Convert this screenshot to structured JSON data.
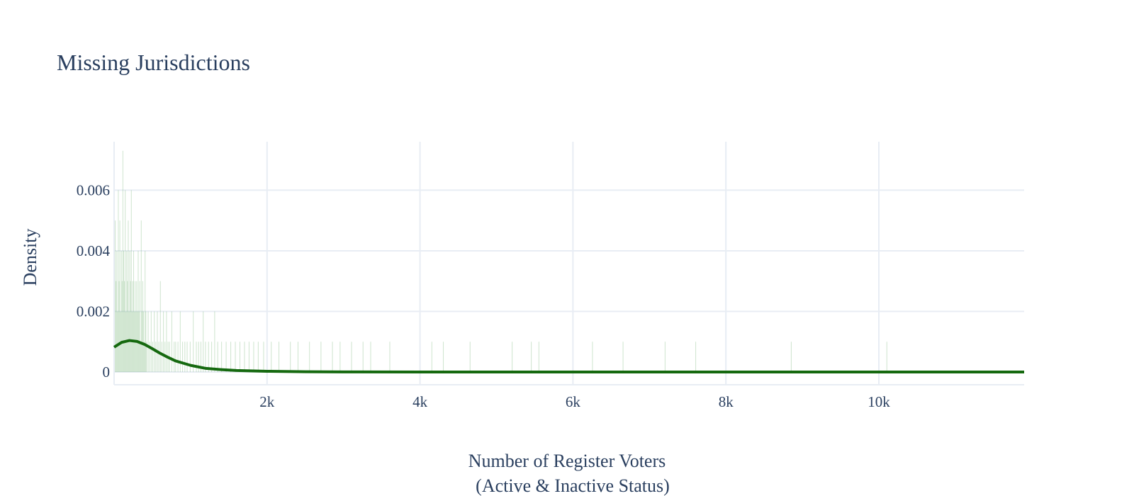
{
  "chart_data": {
    "type": "histogram",
    "title": "Missing Jurisdictions",
    "xlabel_line1": "Number of Register Voters",
    "xlabel_line2": "(Active & Inactive Status)",
    "ylabel": "Density",
    "xlim": [
      0,
      11900
    ],
    "ylim": [
      -0.00042,
      0.0076
    ],
    "x_ticks": [
      {
        "value": 2000,
        "label": "2k"
      },
      {
        "value": 4000,
        "label": "4k"
      },
      {
        "value": 6000,
        "label": "6k"
      },
      {
        "value": 8000,
        "label": "8k"
      },
      {
        "value": 10000,
        "label": "10k"
      }
    ],
    "y_ticks": [
      {
        "value": 0,
        "label": "0"
      },
      {
        "value": 0.002,
        "label": "0.002"
      },
      {
        "value": 0.004,
        "label": "0.004"
      },
      {
        "value": 0.006,
        "label": "0.006"
      }
    ],
    "bin_width": 10,
    "bins": [
      {
        "x": 10,
        "y": 0.005
      },
      {
        "x": 20,
        "y": 0.003
      },
      {
        "x": 30,
        "y": 0.004
      },
      {
        "x": 40,
        "y": 0.002
      },
      {
        "x": 50,
        "y": 0.006
      },
      {
        "x": 60,
        "y": 0.003
      },
      {
        "x": 70,
        "y": 0.005
      },
      {
        "x": 80,
        "y": 0.002
      },
      {
        "x": 90,
        "y": 0.004
      },
      {
        "x": 100,
        "y": 0.003
      },
      {
        "x": 110,
        "y": 0.0073
      },
      {
        "x": 120,
        "y": 0.004
      },
      {
        "x": 130,
        "y": 0.003
      },
      {
        "x": 140,
        "y": 0.006
      },
      {
        "x": 150,
        "y": 0.002
      },
      {
        "x": 160,
        "y": 0.004
      },
      {
        "x": 170,
        "y": 0.003
      },
      {
        "x": 180,
        "y": 0.005
      },
      {
        "x": 190,
        "y": 0.002
      },
      {
        "x": 200,
        "y": 0.004
      },
      {
        "x": 210,
        "y": 0.003
      },
      {
        "x": 220,
        "y": 0.006
      },
      {
        "x": 230,
        "y": 0.002
      },
      {
        "x": 240,
        "y": 0.003
      },
      {
        "x": 250,
        "y": 0.004
      },
      {
        "x": 260,
        "y": 0.002
      },
      {
        "x": 270,
        "y": 0.003
      },
      {
        "x": 280,
        "y": 0.002
      },
      {
        "x": 290,
        "y": 0.003
      },
      {
        "x": 300,
        "y": 0.002
      },
      {
        "x": 310,
        "y": 0.004
      },
      {
        "x": 320,
        "y": 0.002
      },
      {
        "x": 330,
        "y": 0.003
      },
      {
        "x": 340,
        "y": 0.001
      },
      {
        "x": 350,
        "y": 0.005
      },
      {
        "x": 360,
        "y": 0.002
      },
      {
        "x": 370,
        "y": 0.003
      },
      {
        "x": 380,
        "y": 0.002
      },
      {
        "x": 390,
        "y": 0.001
      },
      {
        "x": 400,
        "y": 0.004
      },
      {
        "x": 410,
        "y": 0.002
      },
      {
        "x": 420,
        "y": 0.001
      },
      {
        "x": 440,
        "y": 0.002
      },
      {
        "x": 460,
        "y": 0.001
      },
      {
        "x": 480,
        "y": 0.002
      },
      {
        "x": 500,
        "y": 0.001
      },
      {
        "x": 520,
        "y": 0.002
      },
      {
        "x": 540,
        "y": 0.001
      },
      {
        "x": 560,
        "y": 0.002
      },
      {
        "x": 580,
        "y": 0.001
      },
      {
        "x": 600,
        "y": 0.003
      },
      {
        "x": 620,
        "y": 0.001
      },
      {
        "x": 640,
        "y": 0.002
      },
      {
        "x": 660,
        "y": 0.001
      },
      {
        "x": 680,
        "y": 0.002
      },
      {
        "x": 700,
        "y": 0.001
      },
      {
        "x": 720,
        "y": 0.001
      },
      {
        "x": 750,
        "y": 0.002
      },
      {
        "x": 780,
        "y": 0.001
      },
      {
        "x": 800,
        "y": 0.001
      },
      {
        "x": 830,
        "y": 0.001
      },
      {
        "x": 860,
        "y": 0.002
      },
      {
        "x": 890,
        "y": 0.001
      },
      {
        "x": 920,
        "y": 0.001
      },
      {
        "x": 950,
        "y": 0.001
      },
      {
        "x": 990,
        "y": 0.001
      },
      {
        "x": 1030,
        "y": 0.002
      },
      {
        "x": 1070,
        "y": 0.001
      },
      {
        "x": 1100,
        "y": 0.001
      },
      {
        "x": 1130,
        "y": 0.001
      },
      {
        "x": 1160,
        "y": 0.002
      },
      {
        "x": 1190,
        "y": 0.001
      },
      {
        "x": 1230,
        "y": 0.001
      },
      {
        "x": 1270,
        "y": 0.001
      },
      {
        "x": 1310,
        "y": 0.002
      },
      {
        "x": 1350,
        "y": 0.001
      },
      {
        "x": 1400,
        "y": 0.001
      },
      {
        "x": 1460,
        "y": 0.001
      },
      {
        "x": 1520,
        "y": 0.001
      },
      {
        "x": 1580,
        "y": 0.001
      },
      {
        "x": 1640,
        "y": 0.001
      },
      {
        "x": 1700,
        "y": 0.001
      },
      {
        "x": 1760,
        "y": 0.001
      },
      {
        "x": 1820,
        "y": 0.001
      },
      {
        "x": 1880,
        "y": 0.001
      },
      {
        "x": 1950,
        "y": 0.001
      },
      {
        "x": 2050,
        "y": 0.001
      },
      {
        "x": 2150,
        "y": 0.001
      },
      {
        "x": 2300,
        "y": 0.001
      },
      {
        "x": 2400,
        "y": 0.001
      },
      {
        "x": 2550,
        "y": 0.001
      },
      {
        "x": 2700,
        "y": 0.001
      },
      {
        "x": 2850,
        "y": 0.001
      },
      {
        "x": 2950,
        "y": 0.001
      },
      {
        "x": 3100,
        "y": 0.001
      },
      {
        "x": 3250,
        "y": 0.001
      },
      {
        "x": 3350,
        "y": 0.001
      },
      {
        "x": 3600,
        "y": 0.001
      },
      {
        "x": 4150,
        "y": 0.001
      },
      {
        "x": 4300,
        "y": 0.001
      },
      {
        "x": 4650,
        "y": 0.001
      },
      {
        "x": 5200,
        "y": 0.001
      },
      {
        "x": 5450,
        "y": 0.001
      },
      {
        "x": 5550,
        "y": 0.001
      },
      {
        "x": 6250,
        "y": 0.001
      },
      {
        "x": 6650,
        "y": 0.001
      },
      {
        "x": 7200,
        "y": 0.001
      },
      {
        "x": 7600,
        "y": 0.001
      },
      {
        "x": 8850,
        "y": 0.001
      },
      {
        "x": 10100,
        "y": 0.001
      }
    ],
    "kde": {
      "x": [
        0,
        100,
        200,
        300,
        400,
        500,
        600,
        700,
        800,
        1000,
        1200,
        1400,
        1600,
        2000,
        2500,
        3000,
        4000,
        6000,
        8000,
        10000,
        11900
      ],
      "y": [
        0.00082,
        0.00098,
        0.00104,
        0.00101,
        0.00091,
        0.00077,
        0.00062,
        0.00049,
        0.00037,
        0.00022,
        0.00012,
        8e-05,
        5e-05,
        2.5e-05,
        1e-05,
        5e-06,
        1e-06,
        0,
        0,
        0,
        0
      ]
    },
    "colors": {
      "line": "#15690f",
      "bars": "#2e8b2e",
      "grid": "#e8edf4",
      "axis": "#2a3f5f"
    }
  }
}
